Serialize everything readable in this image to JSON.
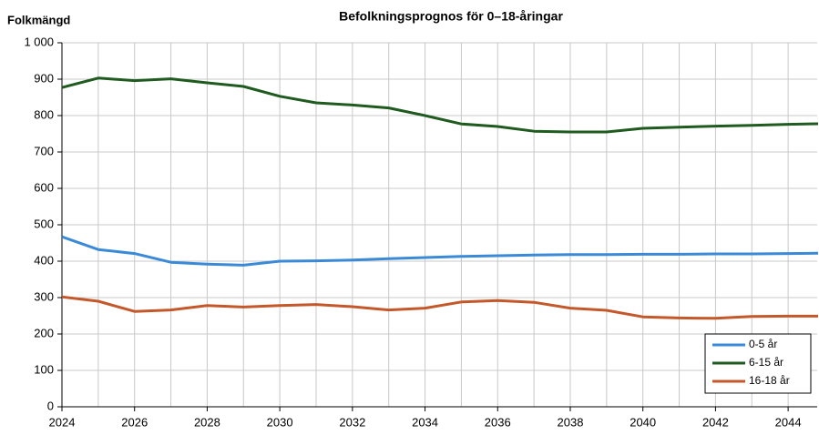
{
  "chart_data": {
    "type": "line",
    "title": "Befolkningsprognos för 0–18-åringar",
    "ylabel": "Folkmängd",
    "x": [
      2024,
      2025,
      2026,
      2027,
      2028,
      2029,
      2030,
      2031,
      2032,
      2033,
      2034,
      2035,
      2036,
      2037,
      2038,
      2039,
      2040,
      2041,
      2042,
      2043,
      2044,
      2045
    ],
    "series": [
      {
        "name": "0-5 år",
        "color": "#3a8ad8",
        "values": [
          467,
          432,
          421,
          397,
          392,
          389,
          400,
          401,
          403,
          407,
          410,
          413,
          415,
          417,
          418,
          418,
          419,
          419,
          420,
          420,
          421,
          422
        ]
      },
      {
        "name": "6-15 år",
        "color": "#1f5a1f",
        "values": [
          877,
          903,
          896,
          901,
          890,
          880,
          853,
          835,
          829,
          821,
          800,
          777,
          770,
          757,
          755,
          755,
          765,
          768,
          771,
          773,
          776,
          778
        ]
      },
      {
        "name": "16-18 år",
        "color": "#c5582a",
        "values": [
          302,
          290,
          262,
          266,
          278,
          274,
          278,
          281,
          275,
          266,
          271,
          288,
          292,
          287,
          271,
          265,
          247,
          244,
          243,
          248,
          249,
          249
        ]
      }
    ],
    "xlim": [
      2024,
      2044.8
    ],
    "xticks": [
      2024,
      2026,
      2028,
      2030,
      2032,
      2034,
      2036,
      2038,
      2040,
      2042,
      2044
    ],
    "xminor_ticks": [
      2025,
      2027,
      2029,
      2031,
      2033,
      2035,
      2037,
      2039,
      2041,
      2043
    ],
    "ylim": [
      0,
      1000
    ],
    "yticks": [
      0,
      100,
      200,
      300,
      400,
      500,
      600,
      700,
      800,
      900,
      {
        "value": 1000,
        "label": "1 000"
      }
    ],
    "grid": true,
    "legend": "lower right"
  }
}
